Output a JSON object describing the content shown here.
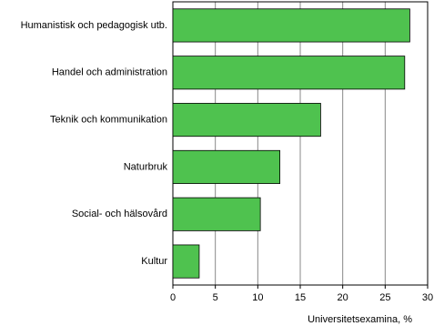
{
  "chart_data": {
    "type": "hbar",
    "categories": [
      "Humanistisk och pedagogisk utb.",
      "Handel och administration",
      "Teknik och kommunikation",
      "Naturbruk",
      "Social- och hälsovård",
      "Kultur"
    ],
    "values": [
      27.9,
      27.3,
      17.4,
      12.6,
      10.3,
      3.1
    ],
    "color": "#4fc24f",
    "xlabel": "Universitetsexamina, %",
    "xlim": [
      0,
      30
    ],
    "xticks": [
      0,
      5,
      10,
      15,
      20,
      25,
      30
    ],
    "grid": true
  }
}
